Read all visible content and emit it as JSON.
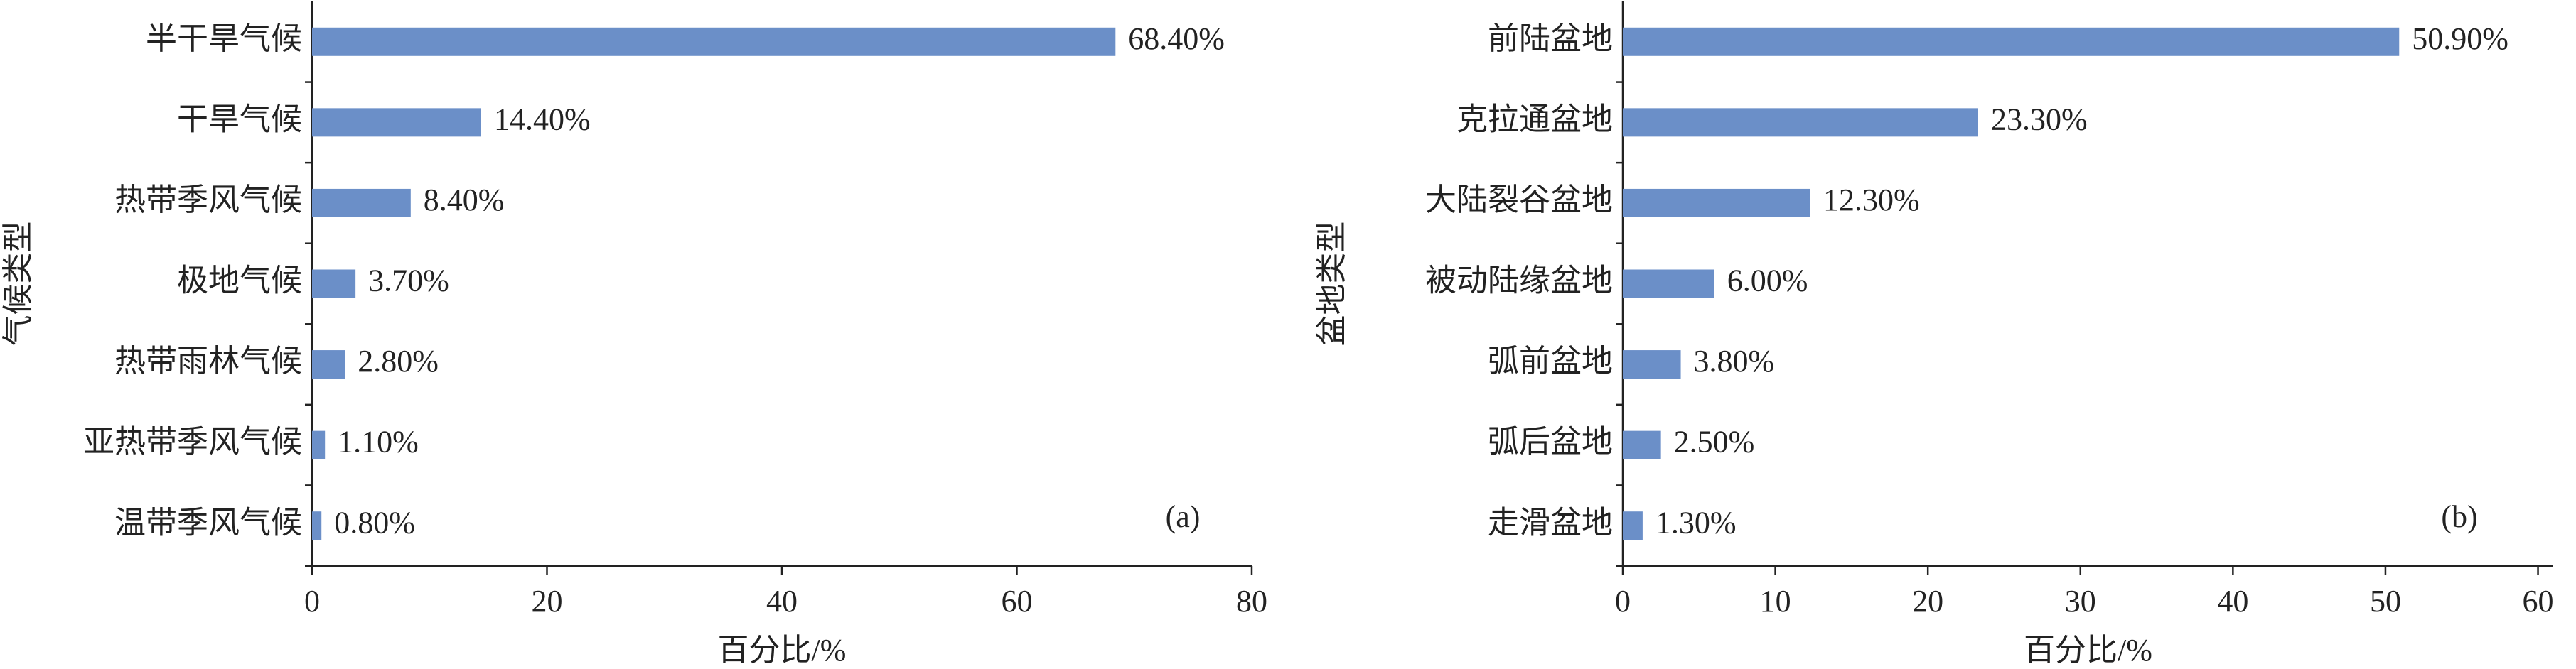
{
  "chart_data": [
    {
      "type": "barh",
      "annotation": "(a)",
      "xlabel": "百分比/%",
      "ylabel": "气候类型",
      "categories": [
        "半干旱气候",
        "干旱气候",
        "热带季风气候",
        "极地气候",
        "热带雨林气候",
        "亚热带季风气候",
        "温带季风气候"
      ],
      "values": [
        68.4,
        14.4,
        8.4,
        3.7,
        2.8,
        1.1,
        0.8
      ],
      "value_labels": [
        "68.40%",
        "14.40%",
        "8.40%",
        "3.70%",
        "2.80%",
        "1.10%",
        "0.80%"
      ],
      "color": "#6b8fc8",
      "xlim": [
        0,
        80
      ],
      "xticks": [
        0,
        20,
        40,
        60,
        80
      ]
    },
    {
      "type": "barh",
      "annotation": "(b)",
      "xlabel": "百分比/%",
      "ylabel": "盆地类型",
      "categories": [
        "前陆盆地",
        "克拉通盆地",
        "大陆裂谷盆地",
        "被动陆缘盆地",
        "弧前盆地",
        "弧后盆地",
        "走滑盆地"
      ],
      "values": [
        50.9,
        23.3,
        12.3,
        6.0,
        3.8,
        2.5,
        1.3
      ],
      "value_labels": [
        "50.90%",
        "23.30%",
        "12.30%",
        "6.00%",
        "3.80%",
        "2.50%",
        "1.30%"
      ],
      "color": "#6b8fc8",
      "xlim": [
        0,
        61
      ],
      "xticks": [
        0,
        10,
        20,
        30,
        40,
        50,
        60
      ]
    }
  ]
}
